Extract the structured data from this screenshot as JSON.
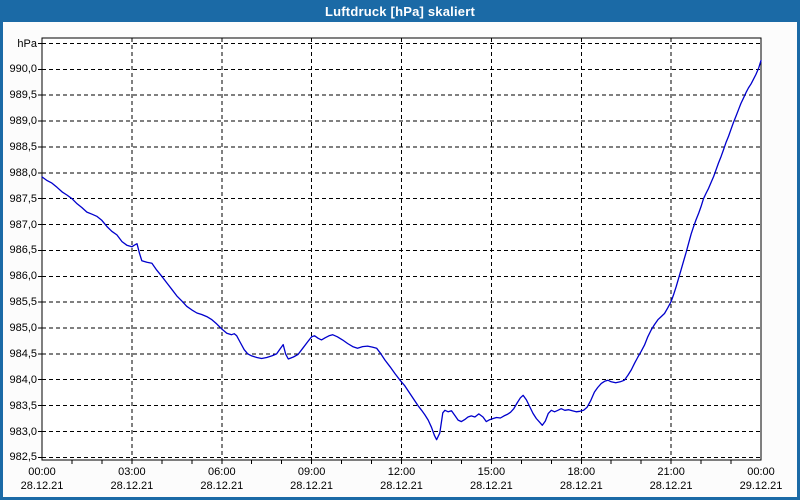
{
  "window": {
    "title": "Luftdruck [hPa] skaliert"
  },
  "colors": {
    "titlebar": "#1B6AA6",
    "window_frame": "#1B6AA6",
    "plot_background": "#FFFFFF",
    "grid": "#000000",
    "text": "#000000",
    "line": "#0000CC"
  },
  "chart_data": {
    "type": "line",
    "title": "Luftdruck [hPa] skaliert",
    "y_unit": "hPa",
    "ylabel": "hPa",
    "xlabel": "",
    "y_min": 982.5,
    "y_max": 990.5,
    "y_step": 0.5,
    "x_range_hours": [
      0,
      24
    ],
    "x_tick_step_hours": 3,
    "x_minor_tick_hours": 1,
    "grid": "dashed",
    "legend": "none",
    "y_tick_labels": [
      "990,0",
      "989,5",
      "989,0",
      "988,5",
      "988,0",
      "987,5",
      "987,0",
      "986,5",
      "986,0",
      "985,5",
      "985,0",
      "984,5",
      "984,0",
      "983,5",
      "983,0",
      "982,5"
    ],
    "y_tick_values": [
      990.0,
      989.5,
      989.0,
      988.5,
      988.0,
      987.5,
      987.0,
      986.5,
      986.0,
      985.5,
      985.0,
      984.5,
      984.0,
      983.5,
      983.0,
      982.5
    ],
    "x_tick_labels": [
      {
        "time": "00:00",
        "date": "28.12.21"
      },
      {
        "time": "03:00",
        "date": "28.12.21"
      },
      {
        "time": "06:00",
        "date": "28.12.21"
      },
      {
        "time": "09:00",
        "date": "28.12.21"
      },
      {
        "time": "12:00",
        "date": "28.12.21"
      },
      {
        "time": "15:00",
        "date": "28.12.21"
      },
      {
        "time": "18:00",
        "date": "28.12.21"
      },
      {
        "time": "21:00",
        "date": "28.12.21"
      },
      {
        "time": "00:00",
        "date": "29.12.21"
      }
    ],
    "series": [
      {
        "name": "Luftdruck",
        "color": "#0000CC",
        "points": [
          [
            0.0,
            987.92
          ],
          [
            0.17,
            987.85
          ],
          [
            0.33,
            987.8
          ],
          [
            0.5,
            987.72
          ],
          [
            0.67,
            987.63
          ],
          [
            0.83,
            987.57
          ],
          [
            1.0,
            987.5
          ],
          [
            1.17,
            987.4
          ],
          [
            1.33,
            987.33
          ],
          [
            1.5,
            987.24
          ],
          [
            1.67,
            987.2
          ],
          [
            1.83,
            987.16
          ],
          [
            2.0,
            987.08
          ],
          [
            2.17,
            986.96
          ],
          [
            2.33,
            986.87
          ],
          [
            2.5,
            986.8
          ],
          [
            2.67,
            986.67
          ],
          [
            2.83,
            986.6
          ],
          [
            3.0,
            986.57
          ],
          [
            3.08,
            986.6
          ],
          [
            3.17,
            986.63
          ],
          [
            3.25,
            986.45
          ],
          [
            3.33,
            986.3
          ],
          [
            3.5,
            986.27
          ],
          [
            3.67,
            986.25
          ],
          [
            3.83,
            986.12
          ],
          [
            4.0,
            986.0
          ],
          [
            4.17,
            985.87
          ],
          [
            4.33,
            985.75
          ],
          [
            4.5,
            985.62
          ],
          [
            4.67,
            985.52
          ],
          [
            4.83,
            985.42
          ],
          [
            5.0,
            985.35
          ],
          [
            5.17,
            985.29
          ],
          [
            5.33,
            985.26
          ],
          [
            5.5,
            985.22
          ],
          [
            5.67,
            985.16
          ],
          [
            5.83,
            985.08
          ],
          [
            6.0,
            984.98
          ],
          [
            6.17,
            984.9
          ],
          [
            6.33,
            984.87
          ],
          [
            6.42,
            984.89
          ],
          [
            6.5,
            984.85
          ],
          [
            6.62,
            984.72
          ],
          [
            6.75,
            984.58
          ],
          [
            6.87,
            984.5
          ],
          [
            7.0,
            984.46
          ],
          [
            7.17,
            984.43
          ],
          [
            7.33,
            984.41
          ],
          [
            7.5,
            984.43
          ],
          [
            7.67,
            984.46
          ],
          [
            7.83,
            984.5
          ],
          [
            7.95,
            984.6
          ],
          [
            8.05,
            984.68
          ],
          [
            8.13,
            984.5
          ],
          [
            8.22,
            984.4
          ],
          [
            8.39,
            984.44
          ],
          [
            8.55,
            984.49
          ],
          [
            8.72,
            984.62
          ],
          [
            8.88,
            984.74
          ],
          [
            9.0,
            984.83
          ],
          [
            9.1,
            984.85
          ],
          [
            9.22,
            984.8
          ],
          [
            9.33,
            984.77
          ],
          [
            9.45,
            984.81
          ],
          [
            9.58,
            984.85
          ],
          [
            9.7,
            984.87
          ],
          [
            9.86,
            984.83
          ],
          [
            10.03,
            984.77
          ],
          [
            10.2,
            984.7
          ],
          [
            10.37,
            984.64
          ],
          [
            10.53,
            984.61
          ],
          [
            10.7,
            984.64
          ],
          [
            10.87,
            984.65
          ],
          [
            11.03,
            984.63
          ],
          [
            11.17,
            984.61
          ],
          [
            11.3,
            984.51
          ],
          [
            11.45,
            984.38
          ],
          [
            11.62,
            984.25
          ],
          [
            11.78,
            984.12
          ],
          [
            11.95,
            983.99
          ],
          [
            12.1,
            983.89
          ],
          [
            12.25,
            983.76
          ],
          [
            12.4,
            983.63
          ],
          [
            12.55,
            983.5
          ],
          [
            12.67,
            983.41
          ],
          [
            12.78,
            983.32
          ],
          [
            12.89,
            983.22
          ],
          [
            13.0,
            983.08
          ],
          [
            13.1,
            982.92
          ],
          [
            13.17,
            982.84
          ],
          [
            13.28,
            982.97
          ],
          [
            13.38,
            983.36
          ],
          [
            13.45,
            983.41
          ],
          [
            13.56,
            983.38
          ],
          [
            13.67,
            983.4
          ],
          [
            13.78,
            983.31
          ],
          [
            13.89,
            983.22
          ],
          [
            14.0,
            983.19
          ],
          [
            14.11,
            983.23
          ],
          [
            14.22,
            983.28
          ],
          [
            14.33,
            983.3
          ],
          [
            14.45,
            983.28
          ],
          [
            14.58,
            983.34
          ],
          [
            14.72,
            983.28
          ],
          [
            14.83,
            983.19
          ],
          [
            14.95,
            983.23
          ],
          [
            15.06,
            983.25
          ],
          [
            15.17,
            983.27
          ],
          [
            15.3,
            983.26
          ],
          [
            15.42,
            983.3
          ],
          [
            15.53,
            983.33
          ],
          [
            15.64,
            983.37
          ],
          [
            15.75,
            983.44
          ],
          [
            15.86,
            983.55
          ],
          [
            15.97,
            983.65
          ],
          [
            16.06,
            983.7
          ],
          [
            16.17,
            983.61
          ],
          [
            16.28,
            983.48
          ],
          [
            16.39,
            983.35
          ],
          [
            16.5,
            983.25
          ],
          [
            16.61,
            983.18
          ],
          [
            16.7,
            983.12
          ],
          [
            16.8,
            983.2
          ],
          [
            16.9,
            983.35
          ],
          [
            17.0,
            983.41
          ],
          [
            17.11,
            983.38
          ],
          [
            17.22,
            983.41
          ],
          [
            17.33,
            983.44
          ],
          [
            17.45,
            983.41
          ],
          [
            17.58,
            983.42
          ],
          [
            17.7,
            983.4
          ],
          [
            17.83,
            983.38
          ],
          [
            17.95,
            983.39
          ],
          [
            18.08,
            983.41
          ],
          [
            18.2,
            983.47
          ],
          [
            18.32,
            983.6
          ],
          [
            18.44,
            983.76
          ],
          [
            18.55,
            983.85
          ],
          [
            18.67,
            983.93
          ],
          [
            18.78,
            983.97
          ],
          [
            18.89,
            983.99
          ],
          [
            19.0,
            983.96
          ],
          [
            19.15,
            983.94
          ],
          [
            19.3,
            983.96
          ],
          [
            19.44,
            983.99
          ],
          [
            19.56,
            984.09
          ],
          [
            19.67,
            984.19
          ],
          [
            19.78,
            984.32
          ],
          [
            19.89,
            984.44
          ],
          [
            20.0,
            984.55
          ],
          [
            20.11,
            984.67
          ],
          [
            20.22,
            984.83
          ],
          [
            20.33,
            984.96
          ],
          [
            20.44,
            985.06
          ],
          [
            20.56,
            985.16
          ],
          [
            20.67,
            985.22
          ],
          [
            20.78,
            985.28
          ],
          [
            20.89,
            985.39
          ],
          [
            21.0,
            985.51
          ],
          [
            21.08,
            985.64
          ],
          [
            21.17,
            985.8
          ],
          [
            21.25,
            985.96
          ],
          [
            21.33,
            986.12
          ],
          [
            21.42,
            986.3
          ],
          [
            21.5,
            986.46
          ],
          [
            21.58,
            986.63
          ],
          [
            21.67,
            986.82
          ],
          [
            21.75,
            986.96
          ],
          [
            21.83,
            987.09
          ],
          [
            21.92,
            987.22
          ],
          [
            22.0,
            987.35
          ],
          [
            22.08,
            987.5
          ],
          [
            22.17,
            987.61
          ],
          [
            22.25,
            987.7
          ],
          [
            22.33,
            987.81
          ],
          [
            22.42,
            987.93
          ],
          [
            22.5,
            988.06
          ],
          [
            22.58,
            988.19
          ],
          [
            22.67,
            988.32
          ],
          [
            22.75,
            988.45
          ],
          [
            22.83,
            988.58
          ],
          [
            22.92,
            988.71
          ],
          [
            23.0,
            988.84
          ],
          [
            23.08,
            988.97
          ],
          [
            23.17,
            989.1
          ],
          [
            23.25,
            989.22
          ],
          [
            23.33,
            989.34
          ],
          [
            23.42,
            989.45
          ],
          [
            23.5,
            989.55
          ],
          [
            23.58,
            989.64
          ],
          [
            23.67,
            989.72
          ],
          [
            23.75,
            989.81
          ],
          [
            23.83,
            989.9
          ],
          [
            23.92,
            990.02
          ],
          [
            24.0,
            990.17
          ]
        ]
      }
    ]
  }
}
